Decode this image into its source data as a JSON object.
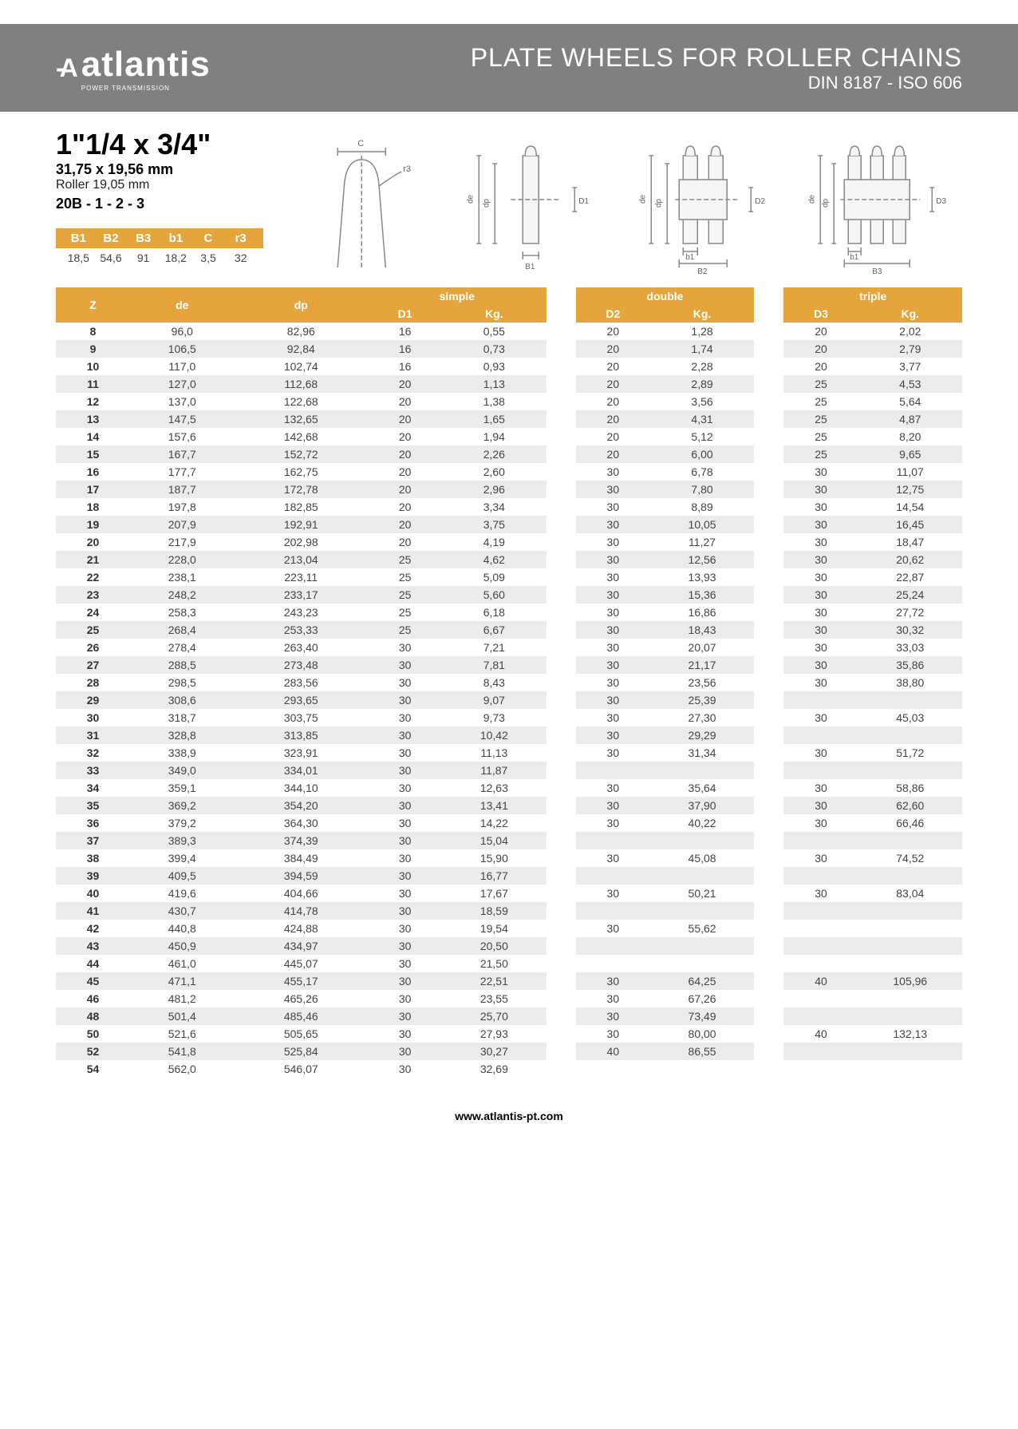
{
  "header": {
    "brand": "atlantis",
    "brand_sub": "POWER TRANSMISSION",
    "title": "PLATE WHEELS FOR ROLLER CHAINS",
    "subtitle": "DIN 8187 - ISO 606"
  },
  "spec": {
    "size_imperial": "1\"1/4 x 3/4\"",
    "size_mm": "31,75 x 19,56 mm",
    "roller": "Roller 19,05 mm",
    "code": "20B - 1 - 2 - 3"
  },
  "bvals": {
    "headers": [
      "B1",
      "B2",
      "B3",
      "b1",
      "C",
      "r3"
    ],
    "values": [
      "18,5",
      "54,6",
      "91",
      "18,2",
      "3,5",
      "32"
    ]
  },
  "table": {
    "group_labels": [
      "simple",
      "double",
      "triple"
    ],
    "sub_headers": {
      "z": "Z",
      "de": "de",
      "dp": "dp",
      "d1": "D1",
      "kg1": "Kg.",
      "d2": "D2",
      "kg2": "Kg.",
      "d3": "D3",
      "kg3": "Kg."
    },
    "rows": [
      {
        "z": "8",
        "de": "96,0",
        "dp": "82,96",
        "d1": "16",
        "kg1": "0,55",
        "d2": "20",
        "kg2": "1,28",
        "d3": "20",
        "kg3": "2,02"
      },
      {
        "z": "9",
        "de": "106,5",
        "dp": "92,84",
        "d1": "16",
        "kg1": "0,73",
        "d2": "20",
        "kg2": "1,74",
        "d3": "20",
        "kg3": "2,79"
      },
      {
        "z": "10",
        "de": "117,0",
        "dp": "102,74",
        "d1": "16",
        "kg1": "0,93",
        "d2": "20",
        "kg2": "2,28",
        "d3": "20",
        "kg3": "3,77"
      },
      {
        "z": "11",
        "de": "127,0",
        "dp": "112,68",
        "d1": "20",
        "kg1": "1,13",
        "d2": "20",
        "kg2": "2,89",
        "d3": "25",
        "kg3": "4,53"
      },
      {
        "z": "12",
        "de": "137,0",
        "dp": "122,68",
        "d1": "20",
        "kg1": "1,38",
        "d2": "20",
        "kg2": "3,56",
        "d3": "25",
        "kg3": "5,64"
      },
      {
        "z": "13",
        "de": "147,5",
        "dp": "132,65",
        "d1": "20",
        "kg1": "1,65",
        "d2": "20",
        "kg2": "4,31",
        "d3": "25",
        "kg3": "4,87"
      },
      {
        "z": "14",
        "de": "157,6",
        "dp": "142,68",
        "d1": "20",
        "kg1": "1,94",
        "d2": "20",
        "kg2": "5,12",
        "d3": "25",
        "kg3": "8,20"
      },
      {
        "z": "15",
        "de": "167,7",
        "dp": "152,72",
        "d1": "20",
        "kg1": "2,26",
        "d2": "20",
        "kg2": "6,00",
        "d3": "25",
        "kg3": "9,65"
      },
      {
        "z": "16",
        "de": "177,7",
        "dp": "162,75",
        "d1": "20",
        "kg1": "2,60",
        "d2": "30",
        "kg2": "6,78",
        "d3": "30",
        "kg3": "11,07"
      },
      {
        "z": "17",
        "de": "187,7",
        "dp": "172,78",
        "d1": "20",
        "kg1": "2,96",
        "d2": "30",
        "kg2": "7,80",
        "d3": "30",
        "kg3": "12,75"
      },
      {
        "z": "18",
        "de": "197,8",
        "dp": "182,85",
        "d1": "20",
        "kg1": "3,34",
        "d2": "30",
        "kg2": "8,89",
        "d3": "30",
        "kg3": "14,54"
      },
      {
        "z": "19",
        "de": "207,9",
        "dp": "192,91",
        "d1": "20",
        "kg1": "3,75",
        "d2": "30",
        "kg2": "10,05",
        "d3": "30",
        "kg3": "16,45"
      },
      {
        "z": "20",
        "de": "217,9",
        "dp": "202,98",
        "d1": "20",
        "kg1": "4,19",
        "d2": "30",
        "kg2": "11,27",
        "d3": "30",
        "kg3": "18,47"
      },
      {
        "z": "21",
        "de": "228,0",
        "dp": "213,04",
        "d1": "25",
        "kg1": "4,62",
        "d2": "30",
        "kg2": "12,56",
        "d3": "30",
        "kg3": "20,62"
      },
      {
        "z": "22",
        "de": "238,1",
        "dp": "223,11",
        "d1": "25",
        "kg1": "5,09",
        "d2": "30",
        "kg2": "13,93",
        "d3": "30",
        "kg3": "22,87"
      },
      {
        "z": "23",
        "de": "248,2",
        "dp": "233,17",
        "d1": "25",
        "kg1": "5,60",
        "d2": "30",
        "kg2": "15,36",
        "d3": "30",
        "kg3": "25,24"
      },
      {
        "z": "24",
        "de": "258,3",
        "dp": "243,23",
        "d1": "25",
        "kg1": "6,18",
        "d2": "30",
        "kg2": "16,86",
        "d3": "30",
        "kg3": "27,72"
      },
      {
        "z": "25",
        "de": "268,4",
        "dp": "253,33",
        "d1": "25",
        "kg1": "6,67",
        "d2": "30",
        "kg2": "18,43",
        "d3": "30",
        "kg3": "30,32"
      },
      {
        "z": "26",
        "de": "278,4",
        "dp": "263,40",
        "d1": "30",
        "kg1": "7,21",
        "d2": "30",
        "kg2": "20,07",
        "d3": "30",
        "kg3": "33,03"
      },
      {
        "z": "27",
        "de": "288,5",
        "dp": "273,48",
        "d1": "30",
        "kg1": "7,81",
        "d2": "30",
        "kg2": "21,17",
        "d3": "30",
        "kg3": "35,86"
      },
      {
        "z": "28",
        "de": "298,5",
        "dp": "283,56",
        "d1": "30",
        "kg1": "8,43",
        "d2": "30",
        "kg2": "23,56",
        "d3": "30",
        "kg3": "38,80"
      },
      {
        "z": "29",
        "de": "308,6",
        "dp": "293,65",
        "d1": "30",
        "kg1": "9,07",
        "d2": "30",
        "kg2": "25,39",
        "d3": "",
        "kg3": ""
      },
      {
        "z": "30",
        "de": "318,7",
        "dp": "303,75",
        "d1": "30",
        "kg1": "9,73",
        "d2": "30",
        "kg2": "27,30",
        "d3": "30",
        "kg3": "45,03"
      },
      {
        "z": "31",
        "de": "328,8",
        "dp": "313,85",
        "d1": "30",
        "kg1": "10,42",
        "d2": "30",
        "kg2": "29,29",
        "d3": "",
        "kg3": ""
      },
      {
        "z": "32",
        "de": "338,9",
        "dp": "323,91",
        "d1": "30",
        "kg1": "11,13",
        "d2": "30",
        "kg2": "31,34",
        "d3": "30",
        "kg3": "51,72"
      },
      {
        "z": "33",
        "de": "349,0",
        "dp": "334,01",
        "d1": "30",
        "kg1": "11,87",
        "d2": "",
        "kg2": "",
        "d3": "",
        "kg3": ""
      },
      {
        "z": "34",
        "de": "359,1",
        "dp": "344,10",
        "d1": "30",
        "kg1": "12,63",
        "d2": "30",
        "kg2": "35,64",
        "d3": "30",
        "kg3": "58,86"
      },
      {
        "z": "35",
        "de": "369,2",
        "dp": "354,20",
        "d1": "30",
        "kg1": "13,41",
        "d2": "30",
        "kg2": "37,90",
        "d3": "30",
        "kg3": "62,60"
      },
      {
        "z": "36",
        "de": "379,2",
        "dp": "364,30",
        "d1": "30",
        "kg1": "14,22",
        "d2": "30",
        "kg2": "40,22",
        "d3": "30",
        "kg3": "66,46"
      },
      {
        "z": "37",
        "de": "389,3",
        "dp": "374,39",
        "d1": "30",
        "kg1": "15,04",
        "d2": "",
        "kg2": "",
        "d3": "",
        "kg3": ""
      },
      {
        "z": "38",
        "de": "399,4",
        "dp": "384,49",
        "d1": "30",
        "kg1": "15,90",
        "d2": "30",
        "kg2": "45,08",
        "d3": "30",
        "kg3": "74,52"
      },
      {
        "z": "39",
        "de": "409,5",
        "dp": "394,59",
        "d1": "30",
        "kg1": "16,77",
        "d2": "",
        "kg2": "",
        "d3": "",
        "kg3": ""
      },
      {
        "z": "40",
        "de": "419,6",
        "dp": "404,66",
        "d1": "30",
        "kg1": "17,67",
        "d2": "30",
        "kg2": "50,21",
        "d3": "30",
        "kg3": "83,04"
      },
      {
        "z": "41",
        "de": "430,7",
        "dp": "414,78",
        "d1": "30",
        "kg1": "18,59",
        "d2": "",
        "kg2": "",
        "d3": "",
        "kg3": ""
      },
      {
        "z": "42",
        "de": "440,8",
        "dp": "424,88",
        "d1": "30",
        "kg1": "19,54",
        "d2": "30",
        "kg2": "55,62",
        "d3": "",
        "kg3": ""
      },
      {
        "z": "43",
        "de": "450,9",
        "dp": "434,97",
        "d1": "30",
        "kg1": "20,50",
        "d2": "",
        "kg2": "",
        "d3": "",
        "kg3": ""
      },
      {
        "z": "44",
        "de": "461,0",
        "dp": "445,07",
        "d1": "30",
        "kg1": "21,50",
        "d2": "",
        "kg2": "",
        "d3": "",
        "kg3": ""
      },
      {
        "z": "45",
        "de": "471,1",
        "dp": "455,17",
        "d1": "30",
        "kg1": "22,51",
        "d2": "30",
        "kg2": "64,25",
        "d3": "40",
        "kg3": "105,96"
      },
      {
        "z": "46",
        "de": "481,2",
        "dp": "465,26",
        "d1": "30",
        "kg1": "23,55",
        "d2": "30",
        "kg2": "67,26",
        "d3": "",
        "kg3": ""
      },
      {
        "z": "48",
        "de": "501,4",
        "dp": "485,46",
        "d1": "30",
        "kg1": "25,70",
        "d2": "30",
        "kg2": "73,49",
        "d3": "",
        "kg3": ""
      },
      {
        "z": "50",
        "de": "521,6",
        "dp": "505,65",
        "d1": "30",
        "kg1": "27,93",
        "d2": "30",
        "kg2": "80,00",
        "d3": "40",
        "kg3": "132,13"
      },
      {
        "z": "52",
        "de": "541,8",
        "dp": "525,84",
        "d1": "30",
        "kg1": "30,27",
        "d2": "40",
        "kg2": "86,55",
        "d3": "",
        "kg3": ""
      },
      {
        "z": "54",
        "de": "562,0",
        "dp": "546,07",
        "d1": "30",
        "kg1": "32,69",
        "d2": "",
        "kg2": "",
        "d3": "",
        "kg3": ""
      }
    ]
  },
  "footer": {
    "url": "www.atlantis-pt.com"
  },
  "diagram_labels": {
    "c": "C",
    "r3": "r3",
    "de": "de",
    "dp": "dp",
    "d1": "D1",
    "d2": "D2",
    "d3": "D3",
    "b1u": "B1",
    "b1l": "b1",
    "b2": "B2",
    "b3": "B3"
  }
}
